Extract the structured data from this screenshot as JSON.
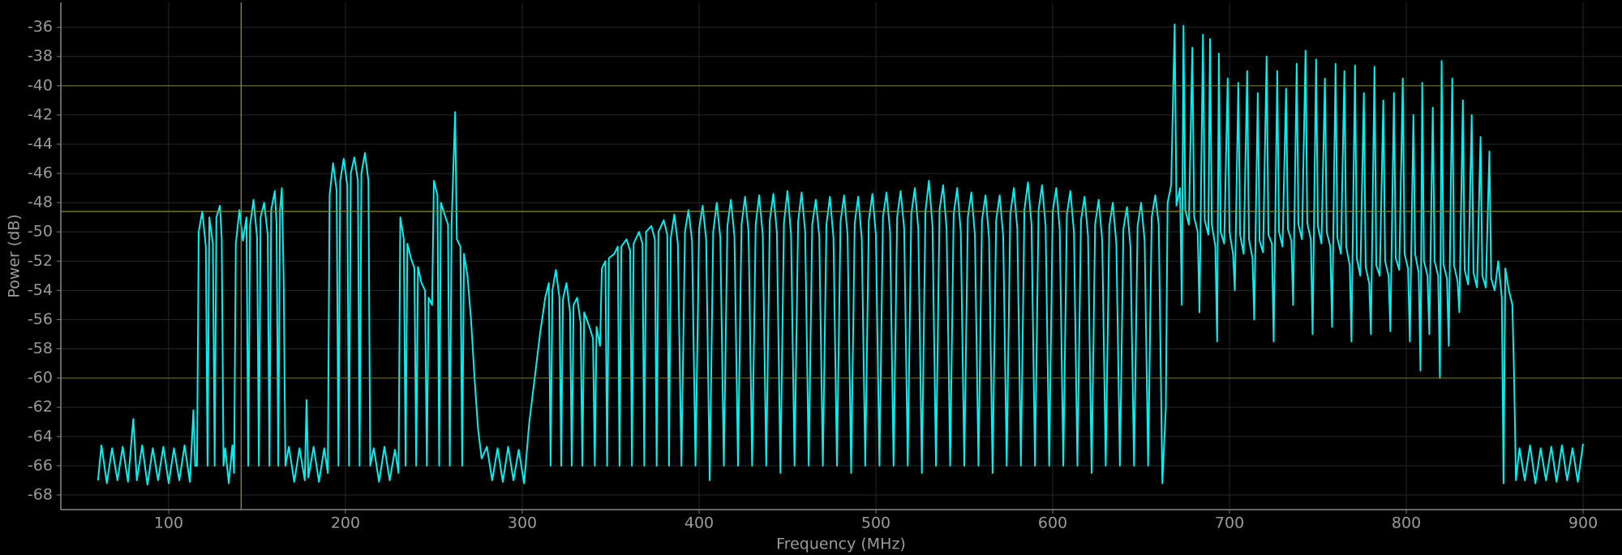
{
  "chart_data": {
    "type": "line",
    "x_label": "Frequency (MHz)",
    "y_label": "Power (dB)",
    "color": "#00f0f0",
    "marker_color": "#8c8c3c",
    "grid": true,
    "xlim": [
      39,
      922
    ],
    "ylim": [
      -69,
      -34.3
    ],
    "xticks": [
      100,
      200,
      300,
      400,
      500,
      600,
      700,
      800,
      900
    ],
    "yticks": [
      -68,
      -66,
      -64,
      -62,
      -60,
      -58,
      -56,
      -54,
      -52,
      -50,
      -48,
      -46,
      -44,
      -42,
      -40,
      -38,
      -36
    ],
    "hlines": [
      -48.6,
      -40,
      -60
    ],
    "vlines": [
      141
    ],
    "x": [
      60,
      62,
      65,
      68,
      71,
      74,
      77,
      80,
      82,
      85,
      88,
      91,
      94,
      97,
      100,
      103,
      106,
      109,
      112,
      114,
      115,
      116,
      117,
      119,
      121,
      122,
      123,
      125,
      126,
      127,
      129,
      130,
      131,
      132,
      134,
      136,
      137,
      138,
      140,
      142,
      144,
      145,
      146,
      148,
      150,
      151,
      152,
      154,
      156,
      157,
      158,
      160,
      161,
      162,
      163,
      164,
      165,
      166,
      168,
      171,
      174,
      177,
      178,
      179,
      182,
      185,
      188,
      190,
      191,
      193,
      195,
      196,
      197,
      199,
      201,
      202,
      203,
      205,
      207,
      208,
      209,
      211,
      213,
      214,
      216,
      219,
      222,
      225,
      228,
      230,
      231,
      233,
      234,
      235,
      237,
      239,
      240,
      241,
      243,
      245,
      246,
      247,
      249,
      250,
      252,
      253,
      254,
      256,
      258,
      259,
      260,
      262,
      263,
      265,
      266,
      267,
      269,
      271,
      273,
      275,
      277,
      280,
      283,
      286,
      289,
      292,
      295,
      298,
      301,
      304,
      307,
      310,
      313,
      315,
      316,
      317,
      319,
      321,
      322,
      323,
      325,
      327,
      328,
      329,
      331,
      333,
      334,
      335,
      338,
      340,
      341,
      342,
      344,
      345,
      347,
      348,
      349,
      352,
      354,
      355,
      356,
      359,
      361,
      362,
      363,
      366,
      368,
      369,
      370,
      373,
      375,
      376,
      377,
      380,
      382,
      383,
      384,
      386,
      388,
      390,
      392,
      394,
      396,
      398,
      400,
      402,
      404,
      406,
      408,
      410,
      412,
      414,
      416,
      418,
      420,
      422,
      424,
      426,
      428,
      430,
      432,
      434,
      436,
      438,
      440,
      442,
      444,
      446,
      448,
      450,
      452,
      454,
      456,
      458,
      460,
      462,
      464,
      466,
      468,
      470,
      472,
      474,
      476,
      478,
      480,
      482,
      484,
      486,
      488,
      490,
      492,
      494,
      496,
      498,
      500,
      502,
      504,
      506,
      508,
      510,
      512,
      514,
      516,
      518,
      520,
      522,
      524,
      526,
      528,
      530,
      532,
      534,
      536,
      538,
      540,
      542,
      544,
      546,
      548,
      550,
      552,
      554,
      556,
      558,
      560,
      562,
      564,
      566,
      568,
      570,
      572,
      574,
      576,
      578,
      580,
      582,
      584,
      586,
      588,
      590,
      592,
      594,
      596,
      598,
      600,
      602,
      604,
      606,
      608,
      610,
      612,
      614,
      616,
      618,
      620,
      622,
      624,
      626,
      628,
      630,
      632,
      634,
      636,
      638,
      640,
      642,
      644,
      646,
      648,
      650,
      652,
      654,
      656,
      658,
      660,
      662,
      664,
      665,
      667,
      669,
      670,
      672,
      673,
      674,
      675,
      677,
      679,
      680,
      682,
      683,
      685,
      686,
      688,
      689,
      690,
      692,
      693,
      694,
      695,
      697,
      699,
      700,
      702,
      703,
      705,
      706,
      708,
      710,
      711,
      713,
      714,
      716,
      717,
      719,
      721,
      722,
      724,
      725,
      727,
      728,
      730,
      732,
      733,
      735,
      736,
      738,
      739,
      741,
      743,
      744,
      746,
      747,
      749,
      750,
      752,
      754,
      755,
      757,
      758,
      760,
      761,
      763,
      765,
      766,
      768,
      769,
      771,
      772,
      774,
      776,
      777,
      779,
      780,
      782,
      783,
      785,
      787,
      788,
      790,
      791,
      793,
      794,
      796,
      798,
      799,
      801,
      802,
      804,
      805,
      807,
      808,
      809,
      810,
      812,
      813,
      815,
      816,
      818,
      819,
      820,
      821,
      823,
      824,
      826,
      827,
      829,
      830,
      832,
      833,
      835,
      837,
      838,
      840,
      842,
      843,
      845,
      847,
      848,
      850,
      852,
      854,
      855,
      856,
      858,
      860,
      861,
      862,
      864,
      867,
      870,
      873,
      876,
      879,
      882,
      885,
      888,
      891,
      894,
      897,
      900
    ],
    "values": [
      -67,
      -64.6,
      -67.2,
      -64.8,
      -67,
      -64.7,
      -67.1,
      -62.8,
      -67,
      -64.6,
      -67.3,
      -64.8,
      -67,
      -64.7,
      -67.2,
      -64.8,
      -67,
      -64.6,
      -67.1,
      -62.2,
      -66,
      -66,
      -50,
      -48.6,
      -51,
      -66,
      -49,
      -50.8,
      -66,
      -49,
      -48.2,
      -50.5,
      -66,
      -64.8,
      -67.2,
      -64.6,
      -66.5,
      -50.8,
      -48.5,
      -50.6,
      -49,
      -66,
      -49.6,
      -47.8,
      -50.4,
      -66,
      -49,
      -48,
      -50.2,
      -66,
      -48.5,
      -47.2,
      -49.5,
      -66,
      -48.5,
      -47,
      -53,
      -66,
      -64.7,
      -67.1,
      -64.8,
      -67,
      -61.5,
      -66.8,
      -64.7,
      -67.1,
      -64.8,
      -66.5,
      -47.5,
      -45.3,
      -47.2,
      -66,
      -46.5,
      -45,
      -46.8,
      -66,
      -46,
      -44.9,
      -46.5,
      -66,
      -46,
      -44.6,
      -46.5,
      -66,
      -64.8,
      -67.1,
      -64.7,
      -67,
      -64.9,
      -66.5,
      -49,
      -50.5,
      -66,
      -50.8,
      -51.8,
      -52.5,
      -66,
      -52.4,
      -53.5,
      -54,
      -66,
      -54.5,
      -55,
      -46.5,
      -47.5,
      -66,
      -48,
      -48.8,
      -49.5,
      -66,
      -49.5,
      -41.8,
      -50.5,
      -51,
      -66,
      -51.5,
      -53,
      -56,
      -60,
      -63.5,
      -65.5,
      -64.7,
      -67,
      -64.8,
      -67.1,
      -64.7,
      -67,
      -64.9,
      -67.2,
      -63,
      -60,
      -57,
      -54.5,
      -53.5,
      -66,
      -54,
      -52.6,
      -54.5,
      -66,
      -54.6,
      -53.5,
      -55.5,
      -66,
      -55,
      -54.5,
      -56.2,
      -66,
      -55.5,
      -56.5,
      -57.3,
      -66,
      -56.5,
      -57.8,
      -52.5,
      -52,
      -66,
      -51.8,
      -51.5,
      -51,
      -66,
      -51,
      -50.5,
      -51.3,
      -66,
      -50.8,
      -50,
      -50.8,
      -66,
      -50,
      -49.6,
      -50.5,
      -66,
      -50,
      -49.2,
      -50.2,
      -66,
      -50.4,
      -48.8,
      -50.8,
      -66,
      -50,
      -48.5,
      -50.6,
      -66,
      -49.8,
      -48.2,
      -50.5,
      -67,
      -50,
      -48,
      -50.4,
      -66,
      -49.6,
      -47.8,
      -50.3,
      -66,
      -49.5,
      -47.6,
      -50,
      -66,
      -49.5,
      -47.5,
      -50.2,
      -66,
      -49.2,
      -47.4,
      -50,
      -66.5,
      -49.4,
      -47.2,
      -50.2,
      -66,
      -49.3,
      -47.3,
      -50,
      -66,
      -49.5,
      -47.8,
      -50.3,
      -66,
      -49.5,
      -47.6,
      -50.4,
      -66,
      -49.3,
      -47.5,
      -50.2,
      -66.5,
      -49.4,
      -47.6,
      -50.5,
      -66,
      -49.2,
      -47.4,
      -50.2,
      -66,
      -49,
      -47.3,
      -50,
      -66,
      -49,
      -47.2,
      -49.8,
      -66,
      -48.8,
      -47,
      -49.8,
      -66.5,
      -48.6,
      -46.5,
      -49.6,
      -66,
      -48.5,
      -46.8,
      -49.8,
      -66,
      -48.8,
      -47,
      -50,
      -66,
      -49,
      -47.3,
      -50.2,
      -66,
      -49.2,
      -47.5,
      -50.4,
      -66.5,
      -49.2,
      -47.5,
      -50.3,
      -66,
      -48.8,
      -47,
      -49.8,
      -66,
      -48.5,
      -46.6,
      -49.5,
      -66,
      -48.5,
      -46.8,
      -49.6,
      -66,
      -48.6,
      -47,
      -49.8,
      -66,
      -48.8,
      -47.2,
      -50,
      -66,
      -49.2,
      -47.6,
      -50.3,
      -66.5,
      -49.5,
      -47.8,
      -50.6,
      -66,
      -49.6,
      -48,
      -50.8,
      -66,
      -49.8,
      -48.3,
      -51,
      -66,
      -49.6,
      -48,
      -50.6,
      -66,
      -49,
      -47.5,
      -49.5,
      -67.2,
      -62,
      -48,
      -46.8,
      -35.8,
      -48.2,
      -47,
      -55,
      -35.9,
      -48.5,
      -49.5,
      -37.4,
      -49,
      -50,
      -55.5,
      -36.5,
      -49.2,
      -50.2,
      -36.8,
      -49.5,
      -51,
      -57.5,
      -37.8,
      -50,
      -50.8,
      -39.5,
      -50,
      -51.5,
      -54,
      -39.8,
      -50.2,
      -51.5,
      -39,
      -50.5,
      -51.8,
      -56,
      -40.5,
      -50.6,
      -51.4,
      -38,
      -50.2,
      -50.8,
      -57.5,
      -39,
      -50,
      -51,
      -40.2,
      -49.8,
      -50.6,
      -55,
      -38.5,
      -49.5,
      -50.5,
      -37.6,
      -49.4,
      -50.5,
      -57,
      -38.2,
      -49.6,
      -50.8,
      -39.5,
      -50,
      -51,
      -56.5,
      -38.5,
      -50.4,
      -51.5,
      -39,
      -51,
      -52.3,
      -57.5,
      -38.6,
      -51.8,
      -53,
      -40.5,
      -52.4,
      -53.5,
      -57,
      -38.7,
      -52.3,
      -53,
      -41,
      -52,
      -53,
      -56.8,
      -40.5,
      -51.8,
      -52.6,
      -39.5,
      -51.5,
      -52.5,
      -57.5,
      -42,
      -51.5,
      -52.8,
      -59.5,
      -39.8,
      -52,
      -53,
      -57,
      -41.5,
      -52,
      -53,
      -60,
      -38.3,
      -52.2,
      -53.2,
      -57.8,
      -39.5,
      -52.3,
      -53.4,
      -55.5,
      -41,
      -52.6,
      -53.6,
      -42,
      -52.8,
      -53.8,
      -43.5,
      -53,
      -53.8,
      -44.5,
      -53.2,
      -54,
      -52,
      -54.5,
      -67.2,
      -52.5,
      -54,
      -55,
      -60,
      -67,
      -64.8,
      -67,
      -64.6,
      -67.2,
      -64.8,
      -67,
      -64.7,
      -67.1,
      -64.6,
      -67,
      -64.8,
      -67.1,
      -64.5
    ]
  }
}
